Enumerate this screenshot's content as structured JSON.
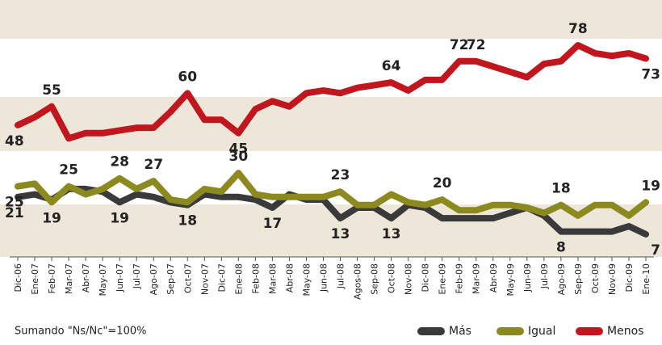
{
  "chart_data": {
    "type": "line",
    "categories": [
      "Dic-06",
      "Ene-07",
      "Feb-07",
      "Mar-07",
      "Abr-07",
      "May-07",
      "Jun-07",
      "Jul-07",
      "Ago-07",
      "Sep-07",
      "Oct-07",
      "Nov-07",
      "Dic-07",
      "Ene-08",
      "Feb-08",
      "Mar-08",
      "Abr-08",
      "May-08",
      "Jun-08",
      "Jul-08",
      "Agos-08",
      "Sep-08",
      "Oct-08",
      "Nov-08",
      "Dic-08",
      "Ene-09",
      "Feb-09",
      "Mar-09",
      "Abr-09",
      "May-09",
      "Jun-09",
      "Jul-09",
      "Ago-09",
      "Sep-09",
      "Oct-09",
      "Nov-09",
      "Dic-09",
      "Ene-10"
    ],
    "series": [
      {
        "name": "Más",
        "color": "#3a3a3a",
        "values": [
          21,
          22,
          20,
          24,
          24,
          23,
          19,
          22,
          21,
          19,
          18,
          22,
          21,
          21,
          20,
          17,
          22,
          20,
          20,
          13,
          17,
          17,
          13,
          18,
          17,
          13,
          13,
          13,
          13,
          15,
          17,
          14,
          8,
          8,
          8,
          8,
          10,
          7
        ],
        "value_labels": [
          "21",
          null,
          null,
          null,
          null,
          null,
          "19",
          null,
          null,
          null,
          "18",
          null,
          null,
          null,
          null,
          "17",
          null,
          null,
          null,
          "13",
          null,
          null,
          "13",
          null,
          null,
          null,
          null,
          null,
          null,
          null,
          null,
          null,
          "8",
          null,
          null,
          null,
          null,
          "7"
        ]
      },
      {
        "name": "Igual",
        "color": "#8c8a1f",
        "values": [
          25,
          26,
          19,
          25,
          22,
          24,
          28,
          24,
          27,
          20,
          19,
          24,
          23,
          30,
          22,
          21,
          21,
          21,
          21,
          23,
          18,
          18,
          22,
          19,
          18,
          20,
          16,
          16,
          18,
          18,
          17,
          15,
          18,
          14,
          18,
          18,
          14,
          19
        ],
        "value_labels": [
          "25",
          null,
          "19",
          "25",
          null,
          null,
          "28",
          null,
          "27",
          null,
          null,
          null,
          null,
          "30",
          null,
          null,
          null,
          null,
          null,
          "23",
          null,
          null,
          null,
          null,
          null,
          "20",
          null,
          null,
          null,
          null,
          null,
          null,
          "18",
          null,
          null,
          null,
          null,
          "19"
        ]
      },
      {
        "name": "Menos",
        "color": "#c2161e",
        "values": [
          48,
          51,
          55,
          43,
          45,
          45,
          46,
          47,
          47,
          53,
          60,
          50,
          50,
          45,
          54,
          57,
          55,
          60,
          61,
          60,
          62,
          63,
          64,
          61,
          65,
          65,
          72,
          72,
          70,
          68,
          66,
          71,
          72,
          78,
          75,
          74,
          75,
          73
        ],
        "value_labels": [
          "48",
          null,
          "55",
          null,
          null,
          null,
          null,
          null,
          null,
          null,
          "60",
          null,
          null,
          "45",
          null,
          null,
          null,
          null,
          null,
          null,
          null,
          null,
          "64",
          null,
          null,
          null,
          "72",
          "72",
          null,
          null,
          null,
          null,
          null,
          "78",
          null,
          null,
          null,
          "73"
        ]
      }
    ],
    "ylim": [
      0,
      95
    ],
    "footnote": "Sumando \"Ns/Nc\"=100%"
  }
}
